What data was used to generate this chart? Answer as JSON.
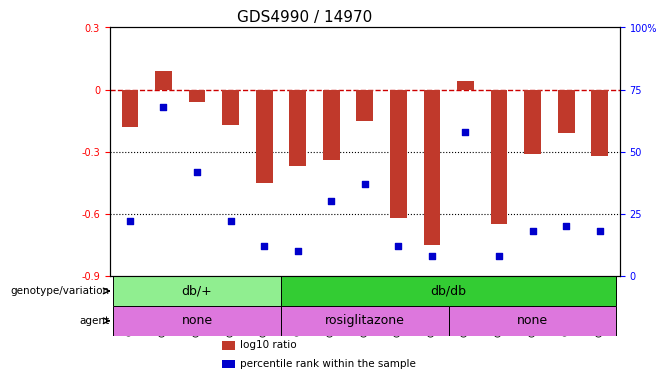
{
  "title": "GDS4990 / 14970",
  "samples": [
    "GSM904674",
    "GSM904675",
    "GSM904676",
    "GSM904677",
    "GSM904678",
    "GSM904684",
    "GSM904685",
    "GSM904686",
    "GSM904687",
    "GSM904688",
    "GSM904679",
    "GSM904680",
    "GSM904681",
    "GSM904682",
    "GSM904683"
  ],
  "log10_ratio": [
    -0.18,
    0.09,
    -0.06,
    -0.17,
    -0.45,
    -0.37,
    -0.34,
    -0.15,
    -0.62,
    -0.75,
    0.04,
    -0.65,
    -0.31,
    -0.21,
    -0.32
  ],
  "percentile": [
    22,
    68,
    42,
    22,
    12,
    10,
    30,
    37,
    12,
    8,
    58,
    8,
    18,
    20,
    18
  ],
  "ylim_left": [
    -0.9,
    0.3
  ],
  "ylim_right": [
    0,
    100
  ],
  "yticks_left": [
    -0.9,
    -0.6,
    -0.3,
    0,
    0.3
  ],
  "yticks_right": [
    0,
    25,
    50,
    75,
    100
  ],
  "bar_color": "#c0392b",
  "dot_color": "#0000cc",
  "hline_color": "#cc0000",
  "dotted_color": "#000000",
  "bg_color": "#ffffff",
  "plot_bg": "#ffffff",
  "genotype_groups": [
    {
      "label": "db/+",
      "start": 0,
      "end": 4,
      "color": "#90ee90"
    },
    {
      "label": "db/db",
      "start": 5,
      "end": 14,
      "color": "#33cc33"
    }
  ],
  "agent_groups": [
    {
      "label": "none",
      "start": 0,
      "end": 4,
      "color": "#dd88dd"
    },
    {
      "label": "rosiglitazone",
      "start": 5,
      "end": 9,
      "color": "#dd88dd"
    },
    {
      "label": "none",
      "start": 10,
      "end": 14,
      "color": "#dd88dd"
    }
  ],
  "legend_items": [
    {
      "color": "#c0392b",
      "label": "log10 ratio"
    },
    {
      "color": "#0000cc",
      "label": "percentile rank within the sample"
    }
  ],
  "title_fontsize": 11,
  "tick_fontsize": 7,
  "label_fontsize": 9
}
